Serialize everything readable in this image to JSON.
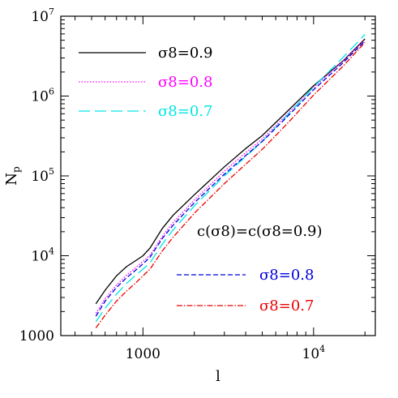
{
  "chart_data": {
    "type": "line",
    "xscale": "log",
    "yscale": "log",
    "xlim": [
      330,
      23000
    ],
    "ylim": [
      1000,
      10000000
    ],
    "xlabel": "l",
    "ylabel": "N",
    "ylabel_sub": "p",
    "grid": false,
    "x_ticks": [
      {
        "value": 1000,
        "base": "1000",
        "exp": ""
      },
      {
        "value": 10000,
        "base": "10",
        "exp": "4"
      }
    ],
    "y_ticks": [
      {
        "value": 1000,
        "base": "1000",
        "exp": ""
      },
      {
        "value": 10000,
        "base": "10",
        "exp": "4"
      },
      {
        "value": 100000,
        "base": "10",
        "exp": "5"
      },
      {
        "value": 1000000,
        "base": "10",
        "exp": "6"
      },
      {
        "value": 10000000,
        "base": "10",
        "exp": "7"
      }
    ],
    "legend_note": "c(σ8)=c(σ8=0.9)",
    "series": [
      {
        "label": "σ8=0.9",
        "color": "#000000",
        "dash": "",
        "legend_group": "top",
        "x": [
          530,
          600,
          700,
          800,
          900,
          1000,
          1100,
          1300,
          1500,
          2000,
          3000,
          4000,
          5000,
          7000,
          10000,
          15000,
          20000
        ],
        "y": [
          2500,
          3700,
          5600,
          7300,
          8600,
          10000,
          12500,
          22000,
          32000,
          58000,
          130000,
          220000,
          320000,
          640000,
          1350000,
          2800000,
          5200000
        ]
      },
      {
        "label": "σ8=0.8",
        "color": "#ff00ff",
        "dash": "1.5,2",
        "legend_group": "top",
        "x": [
          530,
          600,
          700,
          800,
          900,
          1000,
          1100,
          1300,
          1500,
          2000,
          3000,
          4000,
          5000,
          7000,
          10000,
          15000,
          20000
        ],
        "y": [
          1900,
          2900,
          4300,
          5700,
          7000,
          8500,
          10200,
          17500,
          26000,
          50000,
          115000,
          195000,
          290000,
          590000,
          1280000,
          2800000,
          5100000
        ]
      },
      {
        "label": "σ8=0.7",
        "color": "#00e5e5",
        "dash": "14,6",
        "legend_group": "top",
        "x": [
          530,
          600,
          700,
          800,
          900,
          1000,
          1100,
          1300,
          1500,
          2000,
          3000,
          4000,
          5000,
          7000,
          10000,
          15000,
          20000
        ],
        "y": [
          1500,
          2200,
          3300,
          4500,
          5600,
          6800,
          8200,
          14000,
          21000,
          42000,
          100000,
          175000,
          270000,
          570000,
          1300000,
          3100000,
          5900000
        ]
      },
      {
        "label": "σ8=0.8",
        "color": "#0000dd",
        "dash": "6,3",
        "legend_group": "bottom",
        "x": [
          530,
          600,
          700,
          800,
          900,
          1000,
          1100,
          1300,
          1500,
          2000,
          3000,
          4000,
          5000,
          7000,
          10000,
          15000,
          20000
        ],
        "y": [
          1750,
          2700,
          4000,
          5300,
          6500,
          7900,
          9600,
          16500,
          24000,
          46000,
          105000,
          180000,
          270000,
          550000,
          1200000,
          2650000,
          4900000
        ]
      },
      {
        "label": "σ8=0.7",
        "color": "#ee0000",
        "dash": "7,2,1.5,2",
        "legend_group": "bottom",
        "x": [
          530,
          600,
          700,
          800,
          900,
          1000,
          1100,
          1300,
          1500,
          2000,
          3000,
          4000,
          5000,
          7000,
          10000,
          15000,
          20000
        ],
        "y": [
          1250,
          1800,
          2700,
          3600,
          4500,
          5600,
          6800,
          11500,
          17000,
          34000,
          80000,
          140000,
          215000,
          450000,
          1030000,
          2400000,
          4700000
        ]
      }
    ]
  }
}
